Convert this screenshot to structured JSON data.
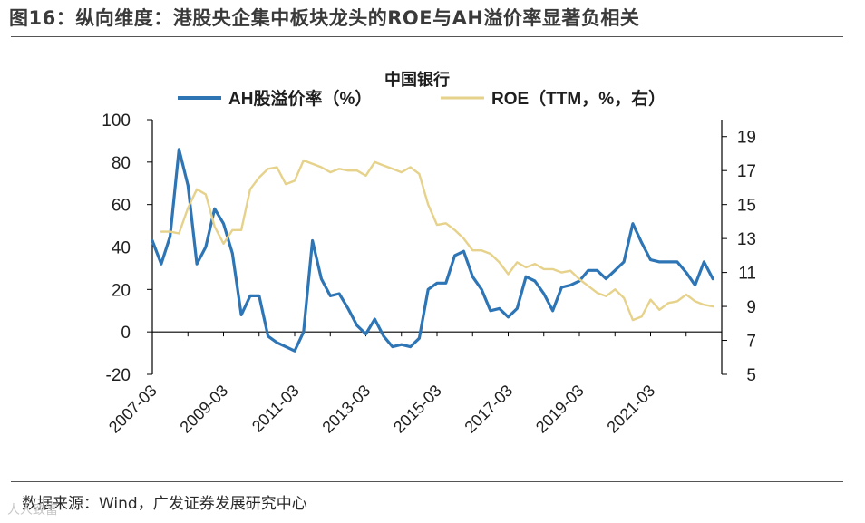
{
  "figure_title": "图16：纵向维度：港股央企集中板块龙头的ROE与AH溢价率显著负相关",
  "source_text": "数据来源：Wind，广发证券发展研究中心",
  "watermark_text": "人人致富",
  "colors": {
    "ah_premium": "#2e75b6",
    "roe": "#e6d28a",
    "axis": "#000000"
  },
  "chart_data": {
    "type": "line",
    "title": "中国银行",
    "x_tick_labels": [
      "2007-03",
      "2009-03",
      "2011-03",
      "2013-03",
      "2015-03",
      "2017-03",
      "2019-03",
      "2021-03"
    ],
    "x_range": [
      "2007-03",
      "2023-03"
    ],
    "y_left": {
      "ylim": [
        -20,
        100
      ],
      "ticks": [
        -20,
        0,
        20,
        40,
        60,
        80,
        100
      ]
    },
    "y_right": {
      "ylim": [
        5,
        20
      ],
      "ticks": [
        5,
        7,
        9,
        11,
        13,
        15,
        17,
        19
      ]
    },
    "legend_position": "top",
    "series": [
      {
        "name": "AH股溢价率（%）",
        "axis": "left",
        "x": [
          "2007-03",
          "2007-06",
          "2007-09",
          "2007-12",
          "2008-03",
          "2008-06",
          "2008-09",
          "2008-12",
          "2009-03",
          "2009-06",
          "2009-09",
          "2009-12",
          "2010-03",
          "2010-06",
          "2010-09",
          "2010-12",
          "2011-03",
          "2011-06",
          "2011-09",
          "2011-12",
          "2012-03",
          "2012-06",
          "2012-09",
          "2012-12",
          "2013-03",
          "2013-06",
          "2013-09",
          "2013-12",
          "2014-03",
          "2014-06",
          "2014-09",
          "2014-12",
          "2015-03",
          "2015-06",
          "2015-09",
          "2015-12",
          "2016-03",
          "2016-06",
          "2016-09",
          "2016-12",
          "2017-03",
          "2017-06",
          "2017-09",
          "2017-12",
          "2018-03",
          "2018-06",
          "2018-09",
          "2018-12",
          "2019-03",
          "2019-06",
          "2019-09",
          "2019-12",
          "2020-03",
          "2020-06",
          "2020-09",
          "2020-12",
          "2021-03",
          "2021-06",
          "2021-09",
          "2021-12",
          "2022-03",
          "2022-06",
          "2022-09",
          "2022-12"
        ],
        "y": [
          43,
          32,
          45,
          86,
          69,
          32,
          40,
          58,
          51,
          37,
          8,
          17,
          17,
          -2,
          -5,
          -7,
          -9,
          0,
          43,
          25,
          17,
          18,
          11,
          3,
          -1,
          6,
          -2,
          -7,
          -6,
          -7,
          -3,
          20,
          23,
          23,
          36,
          38,
          26,
          20,
          10,
          11,
          7,
          11,
          26,
          24,
          18,
          10,
          21,
          22,
          24,
          29,
          29,
          25,
          29,
          33,
          51,
          42,
          34,
          33,
          33,
          33,
          28,
          22,
          33,
          25
        ]
      },
      {
        "name": "ROE（TTM，%，右）",
        "axis": "right",
        "x": [
          "2007-06",
          "2007-09",
          "2007-12",
          "2008-03",
          "2008-06",
          "2008-09",
          "2008-12",
          "2009-03",
          "2009-06",
          "2009-09",
          "2009-12",
          "2010-03",
          "2010-06",
          "2010-09",
          "2010-12",
          "2011-03",
          "2011-06",
          "2011-09",
          "2011-12",
          "2012-03",
          "2012-06",
          "2012-09",
          "2012-12",
          "2013-03",
          "2013-06",
          "2013-09",
          "2013-12",
          "2014-03",
          "2014-06",
          "2014-09",
          "2014-12",
          "2015-03",
          "2015-06",
          "2015-09",
          "2015-12",
          "2016-03",
          "2016-06",
          "2016-09",
          "2016-12",
          "2017-03",
          "2017-06",
          "2017-09",
          "2017-12",
          "2018-03",
          "2018-06",
          "2018-09",
          "2018-12",
          "2019-03",
          "2019-06",
          "2019-09",
          "2019-12",
          "2020-03",
          "2020-06",
          "2020-09",
          "2020-12",
          "2021-03",
          "2021-06",
          "2021-09",
          "2021-12",
          "2022-03",
          "2022-06",
          "2022-09",
          "2022-12"
        ],
        "y": [
          13.4,
          13.4,
          13.3,
          14.8,
          15.9,
          15.6,
          13.7,
          12.7,
          13.5,
          13.5,
          15.9,
          16.6,
          17.1,
          17.2,
          16.2,
          16.4,
          17.6,
          17.4,
          17.2,
          16.9,
          17.1,
          17.0,
          17.0,
          16.7,
          17.5,
          17.3,
          17.1,
          16.9,
          17.2,
          16.8,
          15.0,
          13.8,
          13.9,
          13.5,
          13.0,
          12.3,
          12.3,
          12.1,
          11.6,
          10.9,
          11.6,
          11.3,
          11.5,
          11.2,
          11.2,
          11.0,
          11.1,
          10.6,
          10.2,
          9.8,
          9.6,
          10.0,
          9.5,
          8.2,
          8.4,
          9.4,
          8.8,
          9.2,
          9.3,
          9.7,
          9.3,
          9.1,
          9.0
        ]
      }
    ]
  }
}
